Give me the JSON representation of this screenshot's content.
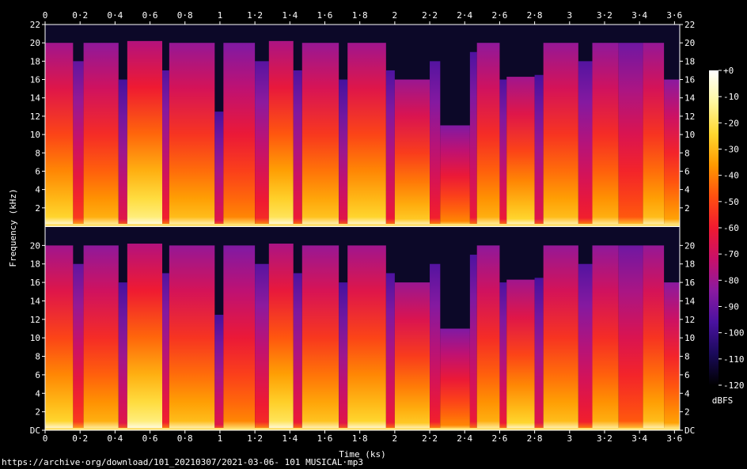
{
  "chart_data": {
    "type": "heatmap",
    "title": "",
    "xlabel": "Time (ks)",
    "ylabel": "Frequency (kHz)",
    "xlim": [
      0,
      3.63
    ],
    "x_ticks": [
      "0",
      "0·2",
      "0·4",
      "0·6",
      "0·8",
      "1",
      "1·2",
      "1·4",
      "1·6",
      "1·8",
      "2",
      "2·2",
      "2·4",
      "2·6",
      "2·8",
      "3",
      "3·2",
      "3·4",
      "3·6"
    ],
    "x_tick_values": [
      0,
      0.2,
      0.4,
      0.6,
      0.8,
      1.0,
      1.2,
      1.4,
      1.6,
      1.8,
      2.0,
      2.2,
      2.4,
      2.6,
      2.8,
      3.0,
      3.2,
      3.4,
      3.6
    ],
    "ylim": [
      0,
      22
    ],
    "channels": [
      {
        "name": "top",
        "y_ticks": [
          "2",
          "4",
          "6",
          "8",
          "10",
          "12",
          "14",
          "16",
          "18",
          "20",
          "22"
        ],
        "y_tick_values": [
          2,
          4,
          6,
          8,
          10,
          12,
          14,
          16,
          18,
          20,
          22
        ]
      },
      {
        "name": "bottom",
        "y_ticks": [
          "DC",
          "2",
          "4",
          "6",
          "8",
          "10",
          "12",
          "14",
          "16",
          "18",
          "20"
        ],
        "y_tick_values": [
          0,
          2,
          4,
          6,
          8,
          10,
          12,
          14,
          16,
          18,
          20
        ]
      }
    ],
    "colorbar": {
      "label": "dBFS",
      "range": [
        -120,
        0
      ],
      "ticks": [
        "+0",
        "-10",
        "-20",
        "-30",
        "-40",
        "-50",
        "-60",
        "-70",
        "-80",
        "-90",
        "-100",
        "-110",
        "-120"
      ],
      "tick_values": [
        0,
        -10,
        -20,
        -30,
        -40,
        -50,
        -60,
        -70,
        -80,
        -90,
        -100,
        -110,
        -120
      ],
      "colors": [
        "#000000",
        "#1a0a5a",
        "#4a12a0",
        "#8a1aa0",
        "#c8106a",
        "#f01a30",
        "#ff5010",
        "#ff9a00",
        "#ffd830",
        "#fff8a0",
        "#ffffff"
      ]
    },
    "segments": [
      {
        "t0": 0.0,
        "t1": 0.16,
        "cutoff": 20.0,
        "level": 0.78
      },
      {
        "t0": 0.16,
        "t1": 0.22,
        "cutoff": 18.0,
        "level": 0.55
      },
      {
        "t0": 0.22,
        "t1": 0.42,
        "cutoff": 20.0,
        "level": 0.72
      },
      {
        "t0": 0.42,
        "t1": 0.47,
        "cutoff": 16.0,
        "level": 0.45
      },
      {
        "t0": 0.47,
        "t1": 0.67,
        "cutoff": 20.2,
        "level": 0.85
      },
      {
        "t0": 0.67,
        "t1": 0.71,
        "cutoff": 17.0,
        "level": 0.5
      },
      {
        "t0": 0.71,
        "t1": 0.97,
        "cutoff": 20.0,
        "level": 0.74
      },
      {
        "t0": 0.97,
        "t1": 1.02,
        "cutoff": 12.5,
        "level": 0.45
      },
      {
        "t0": 1.02,
        "t1": 1.2,
        "cutoff": 20.0,
        "level": 0.66
      },
      {
        "t0": 1.2,
        "t1": 1.28,
        "cutoff": 18.0,
        "level": 0.52
      },
      {
        "t0": 1.28,
        "t1": 1.42,
        "cutoff": 20.2,
        "level": 0.82
      },
      {
        "t0": 1.42,
        "t1": 1.47,
        "cutoff": 17.0,
        "level": 0.48
      },
      {
        "t0": 1.47,
        "t1": 1.68,
        "cutoff": 20.0,
        "level": 0.75
      },
      {
        "t0": 1.68,
        "t1": 1.73,
        "cutoff": 16.0,
        "level": 0.45
      },
      {
        "t0": 1.73,
        "t1": 1.95,
        "cutoff": 20.0,
        "level": 0.78
      },
      {
        "t0": 1.95,
        "t1": 2.0,
        "cutoff": 17.0,
        "level": 0.48
      },
      {
        "t0": 2.0,
        "t1": 2.2,
        "cutoff": 16.0,
        "level": 0.76
      },
      {
        "t0": 2.2,
        "t1": 2.26,
        "cutoff": 18.0,
        "level": 0.5
      },
      {
        "t0": 2.26,
        "t1": 2.43,
        "cutoff": 11.0,
        "level": 0.66
      },
      {
        "t0": 2.43,
        "t1": 2.47,
        "cutoff": 19.0,
        "level": 0.48
      },
      {
        "t0": 2.47,
        "t1": 2.6,
        "cutoff": 20.0,
        "level": 0.72
      },
      {
        "t0": 2.6,
        "t1": 2.64,
        "cutoff": 16.0,
        "level": 0.48
      },
      {
        "t0": 2.64,
        "t1": 2.8,
        "cutoff": 16.3,
        "level": 0.78
      },
      {
        "t0": 2.8,
        "t1": 2.85,
        "cutoff": 16.5,
        "level": 0.45
      },
      {
        "t0": 2.85,
        "t1": 3.05,
        "cutoff": 20.0,
        "level": 0.74
      },
      {
        "t0": 3.05,
        "t1": 3.13,
        "cutoff": 18.0,
        "level": 0.5
      },
      {
        "t0": 3.13,
        "t1": 3.28,
        "cutoff": 20.0,
        "level": 0.72
      },
      {
        "t0": 3.28,
        "t1": 3.42,
        "cutoff": 20.0,
        "level": 0.6
      },
      {
        "t0": 3.42,
        "t1": 3.54,
        "cutoff": 20.0,
        "level": 0.74
      },
      {
        "t0": 3.54,
        "t1": 3.63,
        "cutoff": 16.0,
        "level": 0.7
      }
    ]
  },
  "footer": {
    "source": "https://archive·org/download/101_20210307/2021-03-06- 101 MUSICAL·mp3"
  }
}
